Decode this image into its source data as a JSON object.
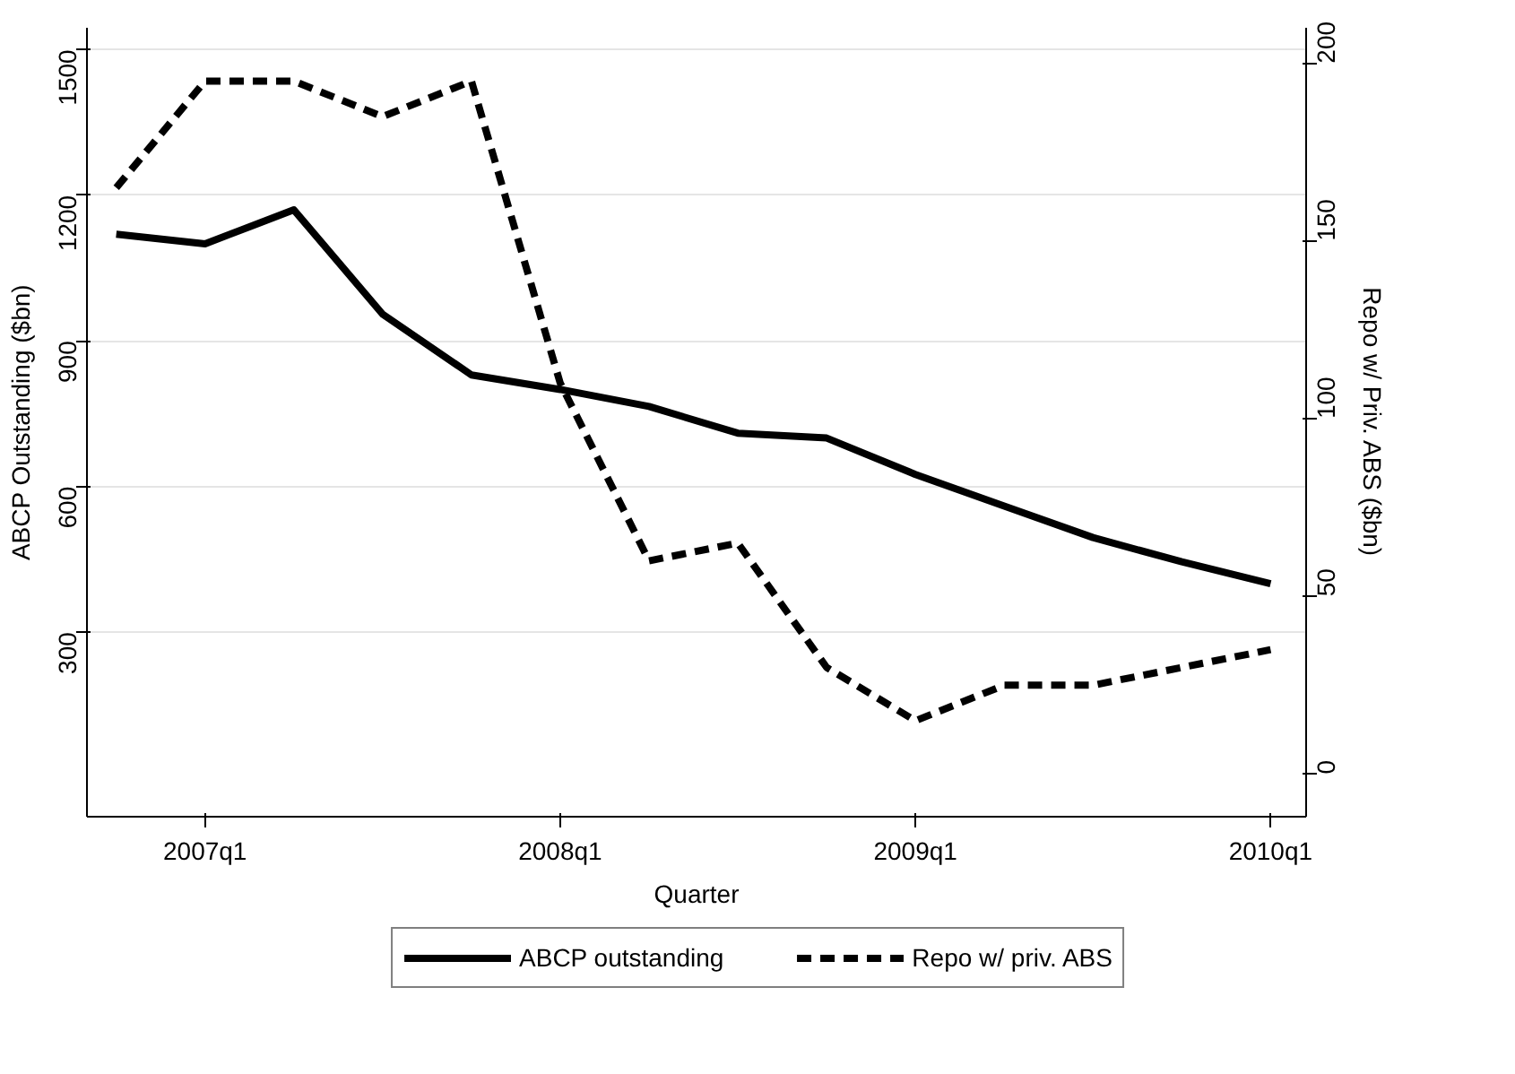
{
  "chart_data": {
    "type": "line",
    "xlabel": "Quarter",
    "ylabel": "ABCP Outstanding ($bn)",
    "y2label": "Repo w/ Priv. ABS ($bn)",
    "categories": [
      null,
      "2007q1",
      null,
      null,
      null,
      "2008q1",
      null,
      null,
      null,
      "2009q1",
      null,
      null,
      null,
      "2010q1"
    ],
    "series": [
      {
        "name": "ABCP outstanding",
        "color": "#000000",
        "line_style": "solid",
        "values": [
          1120,
          1100,
          1170,
          955,
          830,
          800,
          765,
          710,
          700,
          625,
          560,
          495,
          445,
          400
        ]
      },
      {
        "name": "Repo w/ priv. ABS",
        "color": "#000000",
        "line_style": "dashed",
        "axis": "y2",
        "values": [
          165,
          195,
          195,
          185,
          195,
          110,
          60,
          65,
          30,
          15,
          25,
          25,
          30,
          35
        ]
      }
    ],
    "ylim": [
      -80,
      1545
    ],
    "yticks": [
      300,
      600,
      900,
      1200,
      1500
    ],
    "y2lim": [
      -12,
      210
    ],
    "y2ticks": [
      0,
      50,
      100,
      150,
      200
    ],
    "grid": "y",
    "legend": "bottom"
  }
}
